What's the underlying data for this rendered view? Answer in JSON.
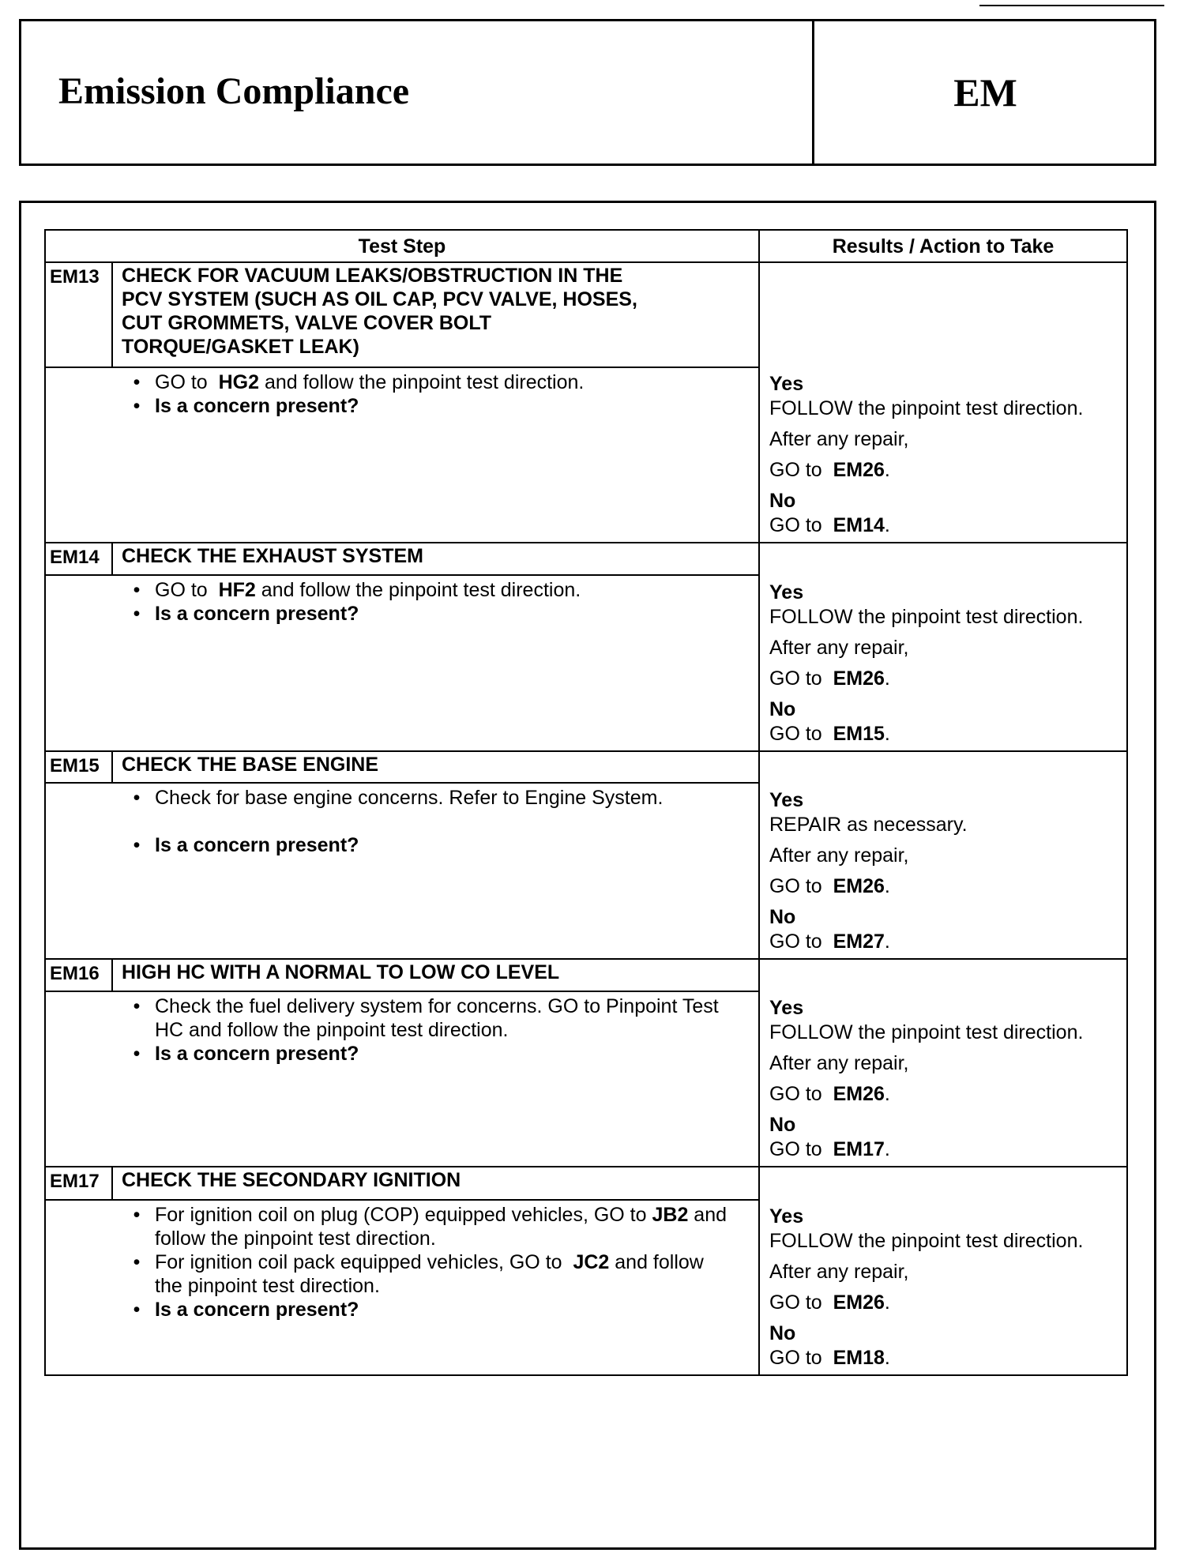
{
  "header": {
    "title": "Emission Compliance",
    "code": "EM"
  },
  "table": {
    "col_test_step": "Test Step",
    "col_results": "Results / Action to Take"
  },
  "steps": [
    {
      "id": "EM13",
      "title_lines": [
        "CHECK FOR VACUUM LEAKS/OBSTRUCTION IN THE",
        "PCV SYSTEM (SUCH AS OIL CAP, PCV VALVE, HOSES,",
        "CUT GROMMETS, VALVE COVER BOLT",
        "TORQUE/GASKET LEAK)"
      ],
      "bullets": [
        [
          {
            "t": "GO to  "
          },
          {
            "t": "HG2",
            "b": true
          },
          {
            "t": " and follow the pinpoint test direction."
          }
        ],
        [
          {
            "t": "Is a concern present?",
            "b": true
          }
        ]
      ],
      "results": {
        "yes": "Yes",
        "yes_action": "FOLLOW the pinpoint test direction.",
        "after": "After any repair,",
        "go": "GO to",
        "yes_goto": "EM26",
        "no": "No",
        "no_goto": "EM14"
      }
    },
    {
      "id": "EM14",
      "title_lines": [
        "CHECK THE EXHAUST SYSTEM"
      ],
      "bullets": [
        [
          {
            "t": "GO to  "
          },
          {
            "t": "HF2",
            "b": true
          },
          {
            "t": " and follow the pinpoint test direction."
          }
        ],
        [
          {
            "t": "Is a concern present?",
            "b": true
          }
        ]
      ],
      "results": {
        "yes": "Yes",
        "yes_action": "FOLLOW the pinpoint test direction.",
        "after": "After any repair,",
        "go": "GO to",
        "yes_goto": "EM26",
        "no": "No",
        "no_goto": "EM15"
      }
    },
    {
      "id": "EM15",
      "title_lines": [
        "CHECK THE BASE ENGINE"
      ],
      "bullets": [
        [
          {
            "t": "Check for base engine concerns. Refer to Engine System."
          }
        ],
        [
          {
            "t": "Is a concern present?",
            "b": true
          }
        ]
      ],
      "results": {
        "yes": "Yes",
        "yes_action": "REPAIR as necessary.",
        "after": "After any repair,",
        "go": "GO to",
        "yes_goto": "EM26",
        "no": "No",
        "no_goto": "EM27"
      }
    },
    {
      "id": "EM16",
      "title_lines": [
        "HIGH HC WITH A NORMAL TO LOW CO LEVEL"
      ],
      "bullets": [
        [
          {
            "t": "Check the fuel delivery system for concerns. GO to Pinpoint Test HC and follow the pinpoint test direction."
          }
        ],
        [
          {
            "t": "Is a concern present?",
            "b": true
          }
        ]
      ],
      "results": {
        "yes": "Yes",
        "yes_action": "FOLLOW the pinpoint test direction.",
        "after": "After any repair,",
        "go": "GO to",
        "yes_goto": "EM26",
        "no": "No",
        "no_goto": "EM17"
      }
    },
    {
      "id": "EM17",
      "title_lines": [
        "CHECK THE SECONDARY IGNITION"
      ],
      "bullets": [
        [
          {
            "t": "For ignition coil on plug (COP) equipped vehicles, GO to "
          },
          {
            "t": "JB2",
            "b": true
          },
          {
            "t": " and follow the pinpoint test direction."
          }
        ],
        [
          {
            "t": "For ignition coil pack equipped vehicles, GO to  "
          },
          {
            "t": "JC2",
            "b": true
          },
          {
            "t": " and follow the pinpoint test direction."
          }
        ],
        [
          {
            "t": "Is a concern present?",
            "b": true
          }
        ]
      ],
      "results": {
        "yes": "Yes",
        "yes_action": "FOLLOW the pinpoint test direction.",
        "after": "After any repair,",
        "go": "GO to",
        "yes_goto": "EM26",
        "no": "No",
        "no_goto": "EM18"
      }
    }
  ]
}
